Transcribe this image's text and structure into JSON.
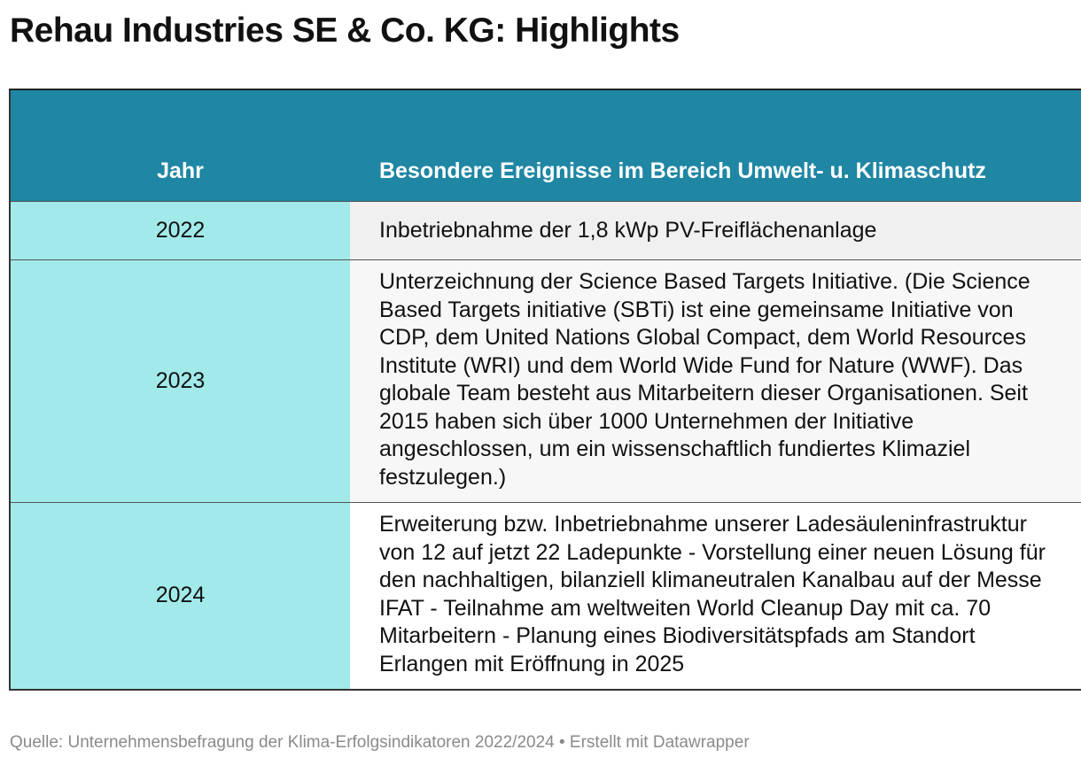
{
  "title": "Rehau Industries SE & Co. KG: Highlights",
  "table": {
    "headers": {
      "year": "Jahr",
      "event": "Besondere Ereignisse im Bereich Umwelt- u. Klimaschutz"
    },
    "rows": [
      {
        "year": "2022",
        "event": "Inbetriebnahme der 1,8 kWp PV-Freiflächenanlage"
      },
      {
        "year": "2023",
        "event": "Unterzeichnung der Science Based Targets Initiative. (Die Science Based Targets initiative (SBTi) ist eine gemeinsame Initiative von CDP, dem United Nations Global Compact, dem World Resources Institute (WRI) und dem World Wide Fund for Nature (WWF). Das globale Team besteht aus Mitarbeitern dieser Organisationen. Seit 2015 haben sich über 1000 Unternehmen der Initiative angeschlossen, um ein wissenschaftlich fundiertes Klimaziel festzulegen.)"
      },
      {
        "year": "2024",
        "event": "Erweiterung bzw. Inbetriebnahme unserer Ladesäuleninfrastruktur von 12 auf jetzt 22 Ladepunkte - Vorstellung einer neuen Lösung für den nachhaltigen, bilanziell klimaneutralen Kanalbau auf der Messe IFAT - Teilnahme am weltweiten World Cleanup Day mit ca. 70 Mitarbeitern - Planung eines Biodiversitätspfads am Standort Erlangen mit Eröffnung in 2025"
      }
    ]
  },
  "footer": "Quelle: Unternehmensbefragung der Klima-Erfolgsindikatoren 2022/2024 • Erstellt mit Datawrapper",
  "colors": {
    "header_bg": "#1f86a4",
    "year_col_bg": "#a2eaea",
    "footer_text": "#8a8a8a"
  }
}
